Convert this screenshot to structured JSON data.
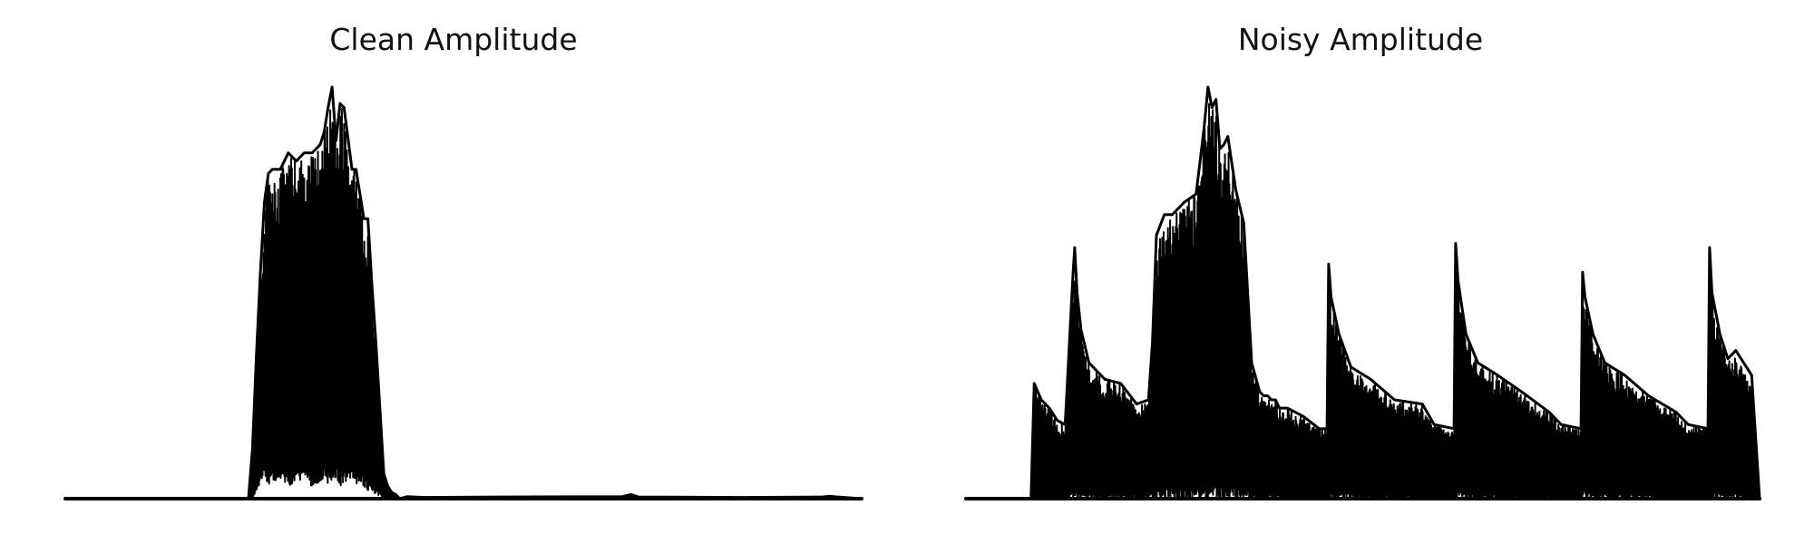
{
  "colors": {
    "background": "#ffffff",
    "trace": "#000000",
    "text": "#111111"
  },
  "chart_data": [
    {
      "type": "line",
      "title": "Clean Amplitude",
      "xlabel": "",
      "ylabel": "",
      "axes_visible": false,
      "grid": false,
      "xlim": [
        0,
        100
      ],
      "ylim": [
        0,
        1.0
      ],
      "envelope": {
        "x": [
          0,
          23.0,
          23.5,
          24.0,
          24.5,
          25.0,
          25.5,
          26.0,
          27.0,
          28.0,
          29.0,
          30.0,
          31.0,
          32.0,
          32.5,
          33.0,
          33.5,
          34.0,
          34.5,
          35.0,
          36.0,
          36.5,
          37.0,
          37.5,
          38.0,
          38.5,
          39.0,
          40.0,
          40.5,
          41.0,
          41.5,
          42.0,
          43.0,
          45.0,
          55.0,
          70.0,
          71.0,
          72.0,
          85.0,
          95.0,
          96.0,
          97.0,
          100
        ],
        "max": [
          0.0,
          0.0,
          0.12,
          0.35,
          0.55,
          0.72,
          0.79,
          0.8,
          0.8,
          0.84,
          0.82,
          0.84,
          0.84,
          0.86,
          0.89,
          0.95,
          1.0,
          0.87,
          0.96,
          0.95,
          0.8,
          0.8,
          0.74,
          0.68,
          0.68,
          0.52,
          0.38,
          0.06,
          0.03,
          0.015,
          0.01,
          0.0,
          0.005,
          0.003,
          0.004,
          0.005,
          0.01,
          0.004,
          0.003,
          0.004,
          0.006,
          0.004,
          0.0
        ],
        "min": [
          0.0,
          0.0,
          0.0,
          0.02,
          0.04,
          0.05,
          0.03,
          0.04,
          0.05,
          0.03,
          0.04,
          0.05,
          0.03,
          0.04,
          0.05,
          0.03,
          0.04,
          0.05,
          0.03,
          0.04,
          0.05,
          0.03,
          0.04,
          0.03,
          0.02,
          0.02,
          0.01,
          0.0,
          0.0,
          0.0,
          0.0,
          0.0,
          0.0,
          0.0,
          0.0,
          0.0,
          0.0,
          0.0,
          0.0,
          0.0,
          0.0,
          0.0,
          0.0
        ]
      }
    },
    {
      "type": "line",
      "title": "Noisy Amplitude",
      "xlabel": "",
      "ylabel": "",
      "axes_visible": false,
      "grid": false,
      "xlim": [
        0,
        100
      ],
      "ylim": [
        0,
        1.0
      ],
      "envelope": {
        "x": [
          0,
          8.2,
          8.6,
          9.5,
          10.5,
          11.5,
          12.5,
          13.5,
          13.7,
          14.0,
          14.5,
          15.5,
          17.5,
          19.5,
          21.5,
          23.0,
          23.5,
          24.0,
          25.0,
          26.0,
          27.5,
          29.0,
          30.0,
          30.5,
          31.0,
          31.5,
          32.0,
          32.5,
          33.0,
          34.0,
          35.0,
          36.0,
          37.0,
          37.5,
          38.0,
          38.5,
          39.0,
          39.5,
          40.5,
          42.5,
          44.5,
          45.5,
          45.7,
          46.0,
          47.0,
          48.5,
          51.0,
          54.0,
          57.5,
          59.0,
          61.5,
          61.7,
          62.0,
          63.0,
          64.5,
          67.0,
          70.0,
          73.5,
          75.0,
          77.5,
          77.7,
          78.0,
          79.0,
          80.5,
          83.0,
          86.0,
          89.5,
          91.0,
          93.5,
          93.7,
          94.0,
          95.0,
          96.0,
          97.0,
          98.0,
          99.0,
          100
        ],
        "max": [
          0.0,
          0.0,
          0.28,
          0.24,
          0.22,
          0.19,
          0.18,
          0.55,
          0.61,
          0.5,
          0.41,
          0.33,
          0.29,
          0.28,
          0.23,
          0.24,
          0.38,
          0.64,
          0.69,
          0.69,
          0.72,
          0.74,
          0.9,
          1.0,
          0.95,
          0.97,
          0.85,
          0.86,
          0.88,
          0.75,
          0.67,
          0.33,
          0.26,
          0.25,
          0.25,
          0.24,
          0.24,
          0.22,
          0.22,
          0.2,
          0.17,
          0.17,
          0.57,
          0.49,
          0.4,
          0.32,
          0.29,
          0.24,
          0.23,
          0.18,
          0.17,
          0.62,
          0.53,
          0.4,
          0.33,
          0.3,
          0.26,
          0.21,
          0.18,
          0.17,
          0.55,
          0.49,
          0.4,
          0.33,
          0.3,
          0.25,
          0.21,
          0.18,
          0.17,
          0.61,
          0.5,
          0.4,
          0.34,
          0.36,
          0.33,
          0.3,
          0.0
        ],
        "min": [
          0.0,
          0.0,
          0.0,
          0.0,
          0.0,
          0.0,
          0.0,
          0.0,
          0.0,
          0.0,
          0.0,
          0.0,
          0.0,
          0.0,
          0.0,
          0.0,
          0.0,
          0.0,
          0.0,
          0.0,
          0.0,
          0.0,
          0.0,
          0.0,
          0.0,
          0.0,
          0.0,
          0.0,
          0.0,
          0.0,
          0.0,
          0.0,
          0.0,
          0.0,
          0.0,
          0.0,
          0.0,
          0.0,
          0.0,
          0.0,
          0.0,
          0.0,
          0.0,
          0.0,
          0.0,
          0.0,
          0.0,
          0.0,
          0.0,
          0.0,
          0.0,
          0.0,
          0.0,
          0.0,
          0.0,
          0.0,
          0.0,
          0.0,
          0.0,
          0.0,
          0.0,
          0.0,
          0.0,
          0.0,
          0.0,
          0.0,
          0.0,
          0.0,
          0.0,
          0.0,
          0.0,
          0.0,
          0.0,
          0.0,
          0.0,
          0.0,
          0.0
        ]
      }
    }
  ]
}
